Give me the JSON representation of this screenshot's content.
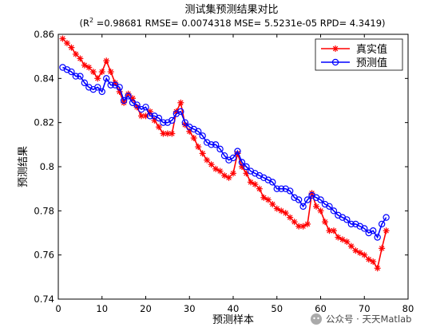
{
  "chart_data": {
    "type": "line",
    "title": "测试集预测结果对比",
    "subtitle_prefix": "(R",
    "subtitle_sup": "2",
    "subtitle_rest": " =0.98681 RMSE= 0.0074318 MSE= 5.5231e-05 RPD= 4.3419)",
    "xlabel": "预测样本",
    "ylabel": "预测结果",
    "xlim": [
      0,
      80
    ],
    "ylim": [
      0.74,
      0.86
    ],
    "xticks": [
      "0",
      "10",
      "20",
      "30",
      "40",
      "50",
      "60",
      "70",
      "80"
    ],
    "yticks": [
      "0.74",
      "0.76",
      "0.78",
      "0.8",
      "0.82",
      "0.84",
      "0.86"
    ],
    "grid": false,
    "legend_position": "top-right",
    "series": [
      {
        "name": "真实值",
        "color": "#ff0000",
        "marker": "star",
        "x": [
          1,
          2,
          3,
          4,
          5,
          6,
          7,
          8,
          9,
          10,
          11,
          12,
          13,
          14,
          15,
          16,
          17,
          18,
          19,
          20,
          21,
          22,
          23,
          24,
          25,
          26,
          27,
          28,
          29,
          30,
          31,
          32,
          33,
          34,
          35,
          36,
          37,
          38,
          39,
          40,
          41,
          42,
          43,
          44,
          45,
          46,
          47,
          48,
          49,
          50,
          51,
          52,
          53,
          54,
          55,
          56,
          57,
          58,
          59,
          60,
          61,
          62,
          63,
          64,
          65,
          66,
          67,
          68,
          69,
          70,
          71,
          72,
          73,
          74,
          75
        ],
        "y": [
          0.858,
          0.856,
          0.854,
          0.851,
          0.849,
          0.846,
          0.845,
          0.843,
          0.84,
          0.843,
          0.848,
          0.843,
          0.838,
          0.834,
          0.829,
          0.833,
          0.831,
          0.827,
          0.823,
          0.823,
          0.825,
          0.821,
          0.818,
          0.815,
          0.815,
          0.815,
          0.825,
          0.829,
          0.819,
          0.816,
          0.813,
          0.809,
          0.806,
          0.803,
          0.801,
          0.799,
          0.798,
          0.796,
          0.795,
          0.797,
          0.806,
          0.8,
          0.797,
          0.793,
          0.792,
          0.79,
          0.786,
          0.785,
          0.783,
          0.781,
          0.78,
          0.779,
          0.777,
          0.775,
          0.773,
          0.773,
          0.774,
          0.788,
          0.782,
          0.78,
          0.775,
          0.771,
          0.771,
          0.768,
          0.767,
          0.766,
          0.764,
          0.762,
          0.761,
          0.76,
          0.758,
          0.757,
          0.754,
          0.763,
          0.771
        ]
      },
      {
        "name": "预测值",
        "color": "#0000ff",
        "marker": "circle",
        "x": [
          1,
          2,
          3,
          4,
          5,
          6,
          7,
          8,
          9,
          10,
          11,
          12,
          13,
          14,
          15,
          16,
          17,
          18,
          19,
          20,
          21,
          22,
          23,
          24,
          25,
          26,
          27,
          28,
          29,
          30,
          31,
          32,
          33,
          34,
          35,
          36,
          37,
          38,
          39,
          40,
          41,
          42,
          43,
          44,
          45,
          46,
          47,
          48,
          49,
          50,
          51,
          52,
          53,
          54,
          55,
          56,
          57,
          58,
          59,
          60,
          61,
          62,
          63,
          64,
          65,
          66,
          67,
          68,
          69,
          70,
          71,
          72,
          73,
          74,
          75
        ],
        "y": [
          0.845,
          0.844,
          0.843,
          0.841,
          0.841,
          0.838,
          0.836,
          0.835,
          0.836,
          0.834,
          0.84,
          0.837,
          0.837,
          0.836,
          0.83,
          0.832,
          0.829,
          0.828,
          0.826,
          0.827,
          0.823,
          0.823,
          0.822,
          0.82,
          0.82,
          0.821,
          0.824,
          0.825,
          0.82,
          0.818,
          0.817,
          0.816,
          0.814,
          0.811,
          0.81,
          0.81,
          0.808,
          0.805,
          0.803,
          0.804,
          0.807,
          0.802,
          0.8,
          0.798,
          0.797,
          0.796,
          0.795,
          0.794,
          0.793,
          0.79,
          0.79,
          0.79,
          0.789,
          0.786,
          0.785,
          0.782,
          0.785,
          0.787,
          0.786,
          0.785,
          0.783,
          0.782,
          0.78,
          0.778,
          0.777,
          0.776,
          0.774,
          0.774,
          0.773,
          0.772,
          0.77,
          0.771,
          0.768,
          0.774,
          0.777
        ]
      }
    ]
  },
  "watermark": "公众号 · 天天Matlab",
  "watermark_icon": "wechat-icon"
}
